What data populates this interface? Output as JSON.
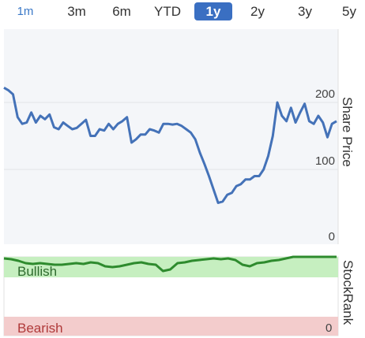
{
  "tabs": [
    {
      "label": "1m",
      "active": false
    },
    {
      "label": "3m",
      "active": false
    },
    {
      "label": "6m",
      "active": false
    },
    {
      "label": "YTD",
      "active": false
    },
    {
      "label": "1y",
      "active": true
    },
    {
      "label": "2y",
      "active": false
    },
    {
      "label": "3y",
      "active": false
    },
    {
      "label": "5y",
      "active": false
    }
  ],
  "colors": {
    "accent": "#3a6fc2",
    "price_line": "#4472b8",
    "rank_line": "#2e8b2e",
    "bullish_zone": "#c6efc0",
    "bearish_zone": "#f3cccc",
    "plot_bg": "#f4f6f9"
  },
  "chart_data": [
    {
      "type": "line",
      "ylabel": "Share Price",
      "ylim": [
        0,
        250
      ],
      "yticks": [
        "0",
        "100",
        "200"
      ],
      "grid": true,
      "series": [
        {
          "values": [
            222,
            218,
            212,
            178,
            168,
            170,
            185,
            170,
            180,
            175,
            182,
            163,
            160,
            170,
            165,
            160,
            162,
            168,
            174,
            150,
            150,
            160,
            158,
            168,
            160,
            168,
            172,
            178,
            140,
            145,
            152,
            152,
            160,
            158,
            155,
            168,
            168,
            167,
            168,
            165,
            160,
            155,
            145,
            125,
            108,
            90,
            70,
            50,
            52,
            62,
            65,
            75,
            78,
            85,
            85,
            90,
            90,
            100,
            120,
            150,
            200,
            180,
            172,
            192,
            170,
            185,
            198,
            172,
            168,
            180,
            170,
            148,
            168,
            172
          ]
        }
      ]
    },
    {
      "type": "line",
      "ylabel": "StockRank",
      "ylim": [
        0,
        100
      ],
      "yticks": [
        "0"
      ],
      "annotations": [
        "Bullish",
        "Bearish"
      ],
      "series": [
        {
          "values": [
            98,
            97,
            95,
            92,
            91,
            92,
            91,
            90,
            90,
            91,
            92,
            91,
            93,
            92,
            88,
            87,
            88,
            90,
            92,
            93,
            91,
            90,
            82,
            84,
            92,
            93,
            95,
            96,
            97,
            98,
            97,
            98,
            96,
            90,
            88,
            92,
            93,
            95,
            96,
            98,
            100,
            100,
            100,
            100,
            100,
            100,
            100
          ]
        }
      ]
    }
  ]
}
